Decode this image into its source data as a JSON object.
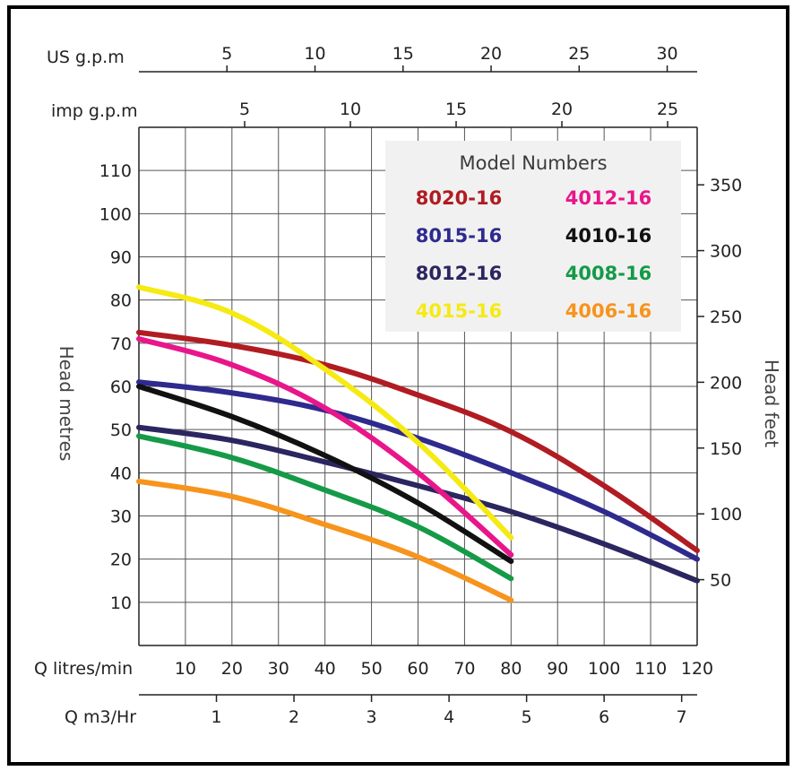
{
  "chart_data": {
    "type": "line",
    "title": "",
    "legend_title": "Model Numbers",
    "legend_placement": "top-right",
    "x": [
      0,
      10,
      20,
      30,
      40,
      50,
      60,
      70,
      80,
      90,
      100,
      110,
      120
    ],
    "xlabel": "Q litres/min",
    "xlim": [
      0,
      120
    ],
    "x_ticks": [
      10,
      20,
      30,
      40,
      50,
      60,
      70,
      80,
      90,
      100,
      110,
      120
    ],
    "ylabel": "Head metres",
    "ylim": [
      0,
      120
    ],
    "y_ticks": [
      10,
      20,
      30,
      40,
      50,
      60,
      70,
      80,
      90,
      100,
      110
    ],
    "y2label": "Head feet",
    "y2_ticks": [
      50,
      100,
      150,
      200,
      250,
      300,
      350
    ],
    "top_axis_1": {
      "label": "US g.p.m",
      "ticks": [
        5,
        10,
        15,
        20,
        25,
        30
      ]
    },
    "top_axis_2": {
      "label": "imp g.p.m",
      "ticks": [
        5,
        10,
        15,
        20,
        25
      ]
    },
    "bottom_axis_2": {
      "label": "Q m3/Hr",
      "ticks": [
        1,
        2,
        3,
        4,
        5,
        6,
        7
      ]
    },
    "grid": true,
    "series": [
      {
        "name": "8020-16",
        "color": "#b01c22",
        "x": [
          0,
          20,
          40,
          60,
          80,
          100,
          120
        ],
        "values": [
          72.5,
          69.5,
          65,
          58,
          49.5,
          37,
          22
        ]
      },
      {
        "name": "4012-16",
        "color": "#e8168a",
        "x": [
          0,
          20,
          40,
          60,
          80
        ],
        "values": [
          71,
          65,
          55,
          40,
          21
        ]
      },
      {
        "name": "8015-16",
        "color": "#2e2a8e",
        "x": [
          0,
          20,
          40,
          60,
          80,
          100,
          120
        ],
        "values": [
          61,
          58.5,
          54.5,
          48,
          40,
          31,
          20
        ]
      },
      {
        "name": "4010-16",
        "color": "#111111",
        "x": [
          0,
          20,
          40,
          60,
          80
        ],
        "values": [
          60,
          53,
          44,
          33,
          19.5
        ]
      },
      {
        "name": "8012-16",
        "color": "#2b2560",
        "x": [
          0,
          20,
          40,
          60,
          80,
          100,
          120
        ],
        "values": [
          50.5,
          47.5,
          42.5,
          37,
          31,
          23.5,
          15
        ]
      },
      {
        "name": "4008-16",
        "color": "#159a48",
        "x": [
          0,
          20,
          40,
          60,
          80
        ],
        "values": [
          48.5,
          43.5,
          36,
          27.5,
          15.5
        ]
      },
      {
        "name": "4015-16",
        "color": "#f5ea14",
        "x": [
          0,
          20,
          40,
          60,
          80
        ],
        "values": [
          83,
          77,
          64,
          47,
          25
        ]
      },
      {
        "name": "4006-16",
        "color": "#f7941d",
        "x": [
          0,
          20,
          40,
          60,
          80
        ],
        "values": [
          38,
          34.5,
          28,
          20.5,
          10.5
        ]
      }
    ]
  }
}
